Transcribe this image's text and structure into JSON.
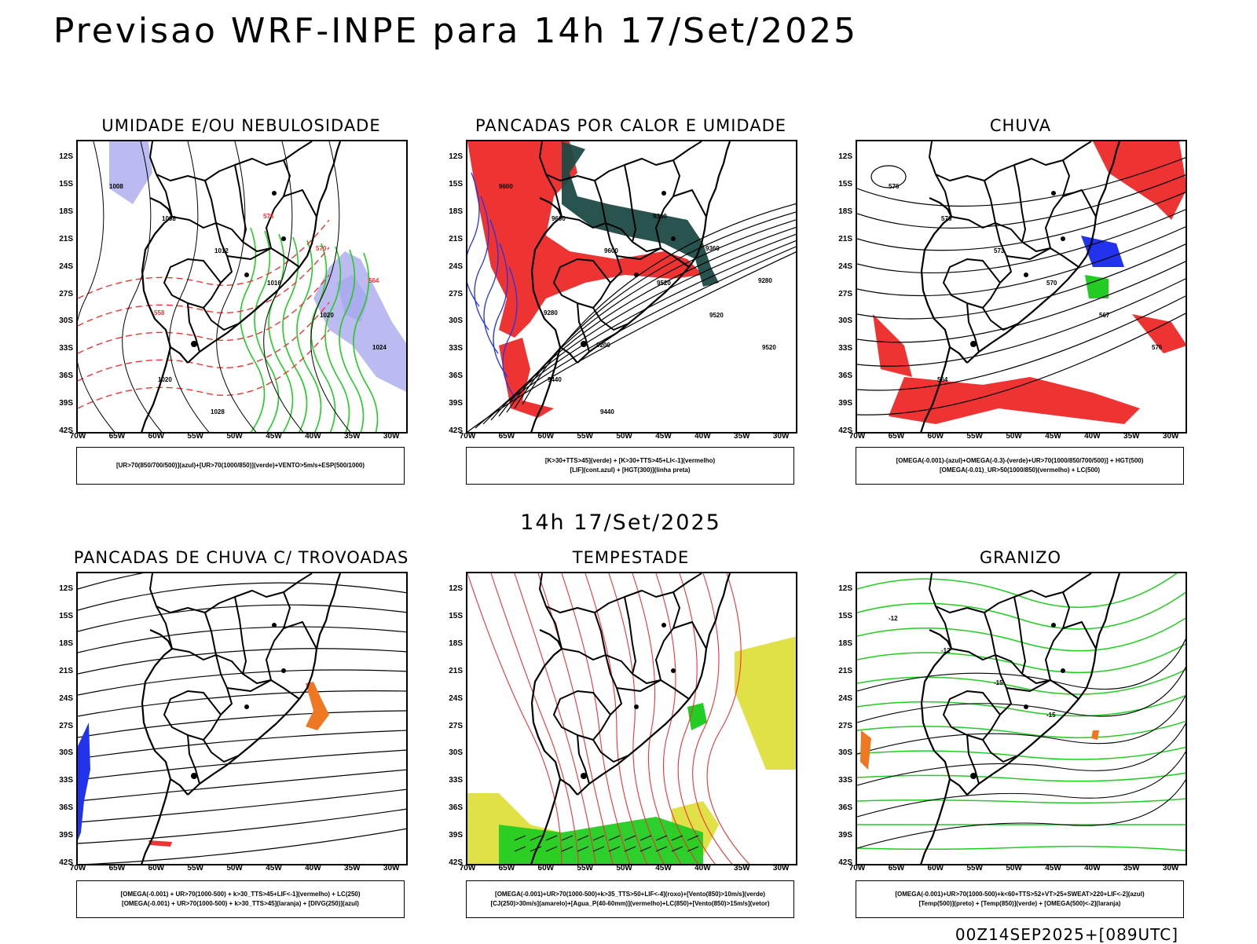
{
  "title": "Previsao WRF-INPE  para 14h 17/Set/2025",
  "subtitle": "14h 17/Set/2025",
  "footer": "00Z14SEP2025+[089UTC]",
  "axes": {
    "lat_labels": [
      "12S",
      "15S",
      "18S",
      "21S",
      "24S",
      "27S",
      "30S",
      "33S",
      "36S",
      "39S",
      "42S"
    ],
    "lon_labels": [
      "70W",
      "65W",
      "60W",
      "55W",
      "50W",
      "45W",
      "40W",
      "35W",
      "30W"
    ]
  },
  "panels": [
    {
      "title": "UMIDADE E/OU NEBULOSIDADE",
      "legend": [
        "[UR>70(850/700/500)](azul)+[UR>70(1000/850)](verde)+VENTO>5m/s+ESP(500/1000)"
      ],
      "contour_labels": [
        "1008",
        "1008",
        "1012",
        "1016",
        "1020",
        "1024",
        "1020",
        "1028",
        "576",
        "570",
        "564",
        "558"
      ]
    },
    {
      "title": "PANCADAS POR CALOR E UMIDADE",
      "legend": [
        "[K>30+TTS>45](verde) + [K>30+TTS>45+LI<-1](vermelho)",
        "[LIF](cont.azul) + [HGT(300)](linha preta)"
      ],
      "contour_labels": [
        "9600",
        "9600",
        "9600",
        "9520",
        "9520",
        "9520",
        "9440",
        "9440",
        "9360",
        "9360",
        "9280",
        "9280",
        "9200"
      ]
    },
    {
      "title": "CHUVA",
      "legend": [
        "[OMEGA(-0.001)-(azul)+OMEGA(-0.3)-(verde)+UR>70(1000/850/700/500)] + HGT(500)",
        "[OMEGA(-0.01)_UR>50(1000/850)(vermelho) + LC(500)"
      ],
      "contour_labels": [
        "576",
        "576",
        "573",
        "570",
        "567",
        "576",
        "564"
      ]
    },
    {
      "title": "PANCADAS DE CHUVA C/ TROVOADAS",
      "legend": [
        "[OMEGA(-0.001) + UR>70(1000-500) + k>30_TTS>45+LIF<-1](vermelho) + LC(250)",
        "[OMEGA(-0.001) + UR>70(1000-500) + k>30_TTS>45](laranja) + [DIVG(250)](azul)"
      ],
      "contour_labels": []
    },
    {
      "title": "TEMPESTADE",
      "legend": [
        "[OMEGA(-0.001)+UR>70(1000-500)+k>35_TTS>50+LIF<-4](roxo)+[Vento(850)>10m/s](verde)",
        "[CJ(250)>30m/s](amarelo)+[Agua_P(40-60mm)](vermelho)+LC(850)+[Vento(850)>15m/s](vetor)"
      ],
      "contour_labels": []
    },
    {
      "title": "GRANIZO",
      "legend": [
        "[OMEGA(-0.001)+UR>70(1000-500)+k<60+TTS>52+VT>25+SWEAT>220+LIF<-2](azul)",
        "[Temp(500)](preto) + [Temp(850)](verde) + [OMEGA(500)<-2](laranja)"
      ],
      "contour_labels": [
        "-12",
        "-12",
        "-15",
        "-15"
      ]
    }
  ],
  "colors": {
    "blue": "#2233ee",
    "lavender": "#aaaaee",
    "green": "#22cc22",
    "red": "#ee3333",
    "orange": "#ee7722",
    "darkteal": "#1e4a44",
    "yellow": "#dddd33",
    "black": "#000000"
  }
}
